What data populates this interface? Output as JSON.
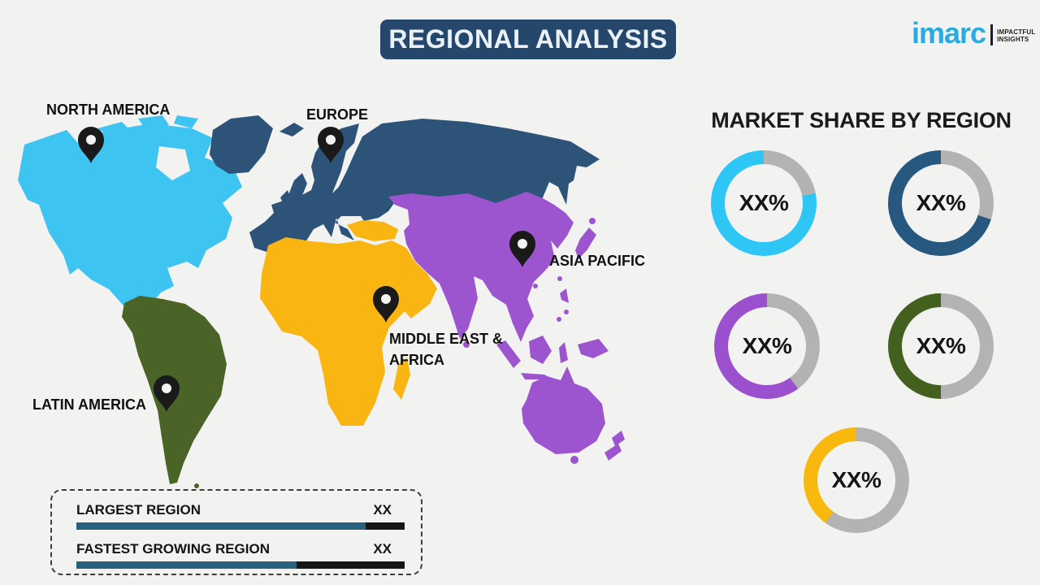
{
  "title_banner": {
    "text": "REGIONAL ANALYSIS",
    "bg": "#25476B",
    "fg": "#EAF2F8"
  },
  "logo": {
    "brand": "imarc",
    "brand_color": "#29ABE2",
    "tagline_line1": "IMPACTFUL",
    "tagline_line2": "INSIGHTS"
  },
  "map": {
    "labels": {
      "north_america": "NORTH AMERICA",
      "europe": "EUROPE",
      "asia_pacific": "ASIA PACIFIC",
      "middle_east_africa_line1": "MIDDLE EAST &",
      "middle_east_africa_line2": "AFRICA",
      "latin_america": "LATIN AMERICA"
    },
    "region_colors": {
      "north-america": "#3EC4F1",
      "europe-russia": "#2D5478",
      "middle-east-africa": "#F9B612",
      "asia-pacific": "#9C55CF",
      "latin-america": "#4A6327"
    },
    "pin_color": "#1A1A1A"
  },
  "market_share": {
    "heading": "MARKET SHARE BY REGION",
    "gray_color": "#B3B3B3",
    "donuts": [
      {
        "region": "North America",
        "color": "#2EC6F5",
        "value_label": "XX%",
        "filled_percent": 78
      },
      {
        "region": "Europe",
        "color": "#27587F",
        "value_label": "XX%",
        "filled_percent": 70
      },
      {
        "region": "Asia Pacific",
        "color": "#9B50CE",
        "value_label": "XX%",
        "filled_percent": 60
      },
      {
        "region": "Latin America",
        "color": "#44601E",
        "value_label": "XX%",
        "filled_percent": 50
      },
      {
        "region": "Middle East & Africa",
        "color": "#F9B80E",
        "value_label": "XX%",
        "filled_percent": 40
      }
    ]
  },
  "legend_box": {
    "bar_primary_color": "#27617F",
    "bar_secondary_color": "#161616",
    "rows": [
      {
        "label": "LARGEST REGION",
        "value": "XX",
        "primary_percent": 88
      },
      {
        "label": "FASTEST GROWING REGION",
        "value": "XX",
        "primary_percent": 67
      }
    ]
  },
  "chart_data": {
    "type": "pie",
    "subtype": "donut-grid",
    "title": "MARKET SHARE BY REGION",
    "notes": "Template infographic: all shares are placeholder labels",
    "series": [
      {
        "name": "North America",
        "label": "XX%",
        "color": "#2EC6F5",
        "filled_fraction_est": 0.78
      },
      {
        "name": "Europe",
        "label": "XX%",
        "color": "#27587F",
        "filled_fraction_est": 0.7
      },
      {
        "name": "Asia Pacific",
        "label": "XX%",
        "color": "#9B50CE",
        "filled_fraction_est": 0.6
      },
      {
        "name": "Latin America",
        "label": "XX%",
        "color": "#44601E",
        "filled_fraction_est": 0.5
      },
      {
        "name": "Middle East & Africa",
        "label": "XX%",
        "color": "#F9B80E",
        "filled_fraction_est": 0.4
      }
    ],
    "legend_bars": [
      {
        "label": "LARGEST REGION",
        "value": "XX",
        "filled_fraction_est": 0.88
      },
      {
        "label": "FASTEST GROWING REGION",
        "value": "XX",
        "filled_fraction_est": 0.67
      }
    ]
  }
}
